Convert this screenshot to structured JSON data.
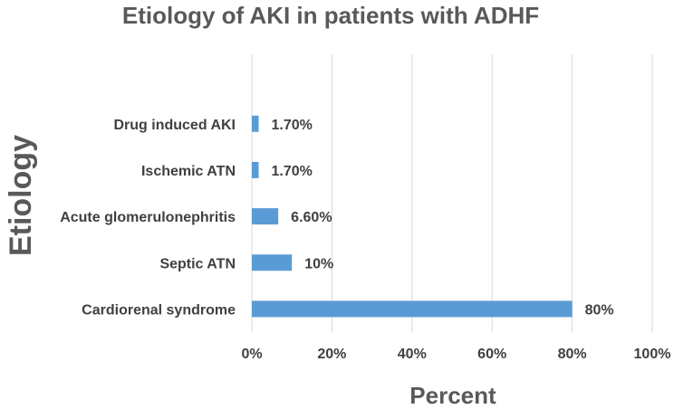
{
  "chart_data": {
    "type": "bar",
    "orientation": "horizontal",
    "title": "Etiology of AKI in patients with ADHF",
    "xlabel": "Percent",
    "ylabel": "Etiology",
    "categories": [
      "Cardiorenal syndrome",
      "Septic ATN",
      "Acute glomerulonephritis",
      "Ischemic ATN",
      "Drug induced AKI"
    ],
    "values": [
      80,
      10,
      6.6,
      1.7,
      1.7
    ],
    "data_labels": [
      "80%",
      "10%",
      "6.60%",
      "1.70%",
      "1.70%"
    ],
    "xlim": [
      0,
      100
    ],
    "x_ticks": [
      0,
      20,
      40,
      60,
      80,
      100
    ],
    "x_tick_labels": [
      "0%",
      "20%",
      "40%",
      "60%",
      "80%",
      "100%"
    ],
    "grid": "vertical",
    "legend": "none",
    "colors": {
      "bar": "#5b9bd5",
      "grid": "#d9d9d9",
      "title": "#595959",
      "text": "#404040"
    }
  }
}
